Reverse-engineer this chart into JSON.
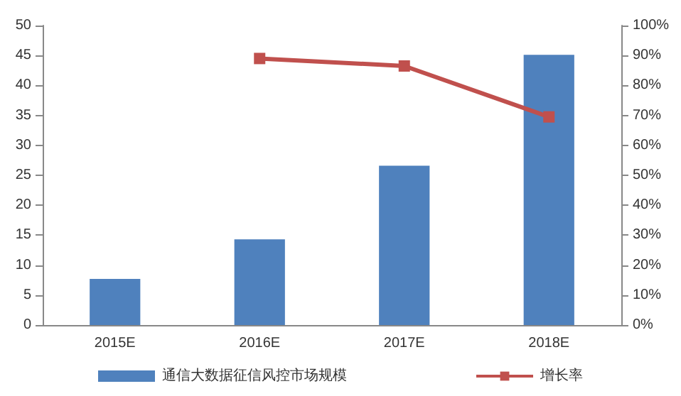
{
  "chart_data": {
    "type": "bar",
    "categories": [
      "2015E",
      "2016E",
      "2017E",
      "2018E"
    ],
    "series": [
      {
        "name": "通信大数据征信风控市场规模",
        "color": "#4f81bd",
        "values": [
          7.7,
          14.3,
          26.6,
          45.1
        ]
      },
      {
        "name": "增长率",
        "type": "line",
        "axis": "y2",
        "color": "#c0504d",
        "marker": "square",
        "values": [
          null,
          89,
          86.5,
          69.5
        ]
      }
    ],
    "ylim": [
      0,
      50
    ],
    "yticks": [
      0,
      5,
      10,
      15,
      20,
      25,
      30,
      35,
      40,
      45,
      50
    ],
    "y2lim": [
      0,
      100
    ],
    "y2ticks": [
      {
        "value": 0,
        "label": "0%"
      },
      {
        "value": 10,
        "label": "10%"
      },
      {
        "value": 20,
        "label": "20%"
      },
      {
        "value": 30,
        "label": "30%"
      },
      {
        "value": 40,
        "label": "40%"
      },
      {
        "value": 50,
        "label": "50%"
      },
      {
        "value": 60,
        "label": "60%"
      },
      {
        "value": 70,
        "label": "70%"
      },
      {
        "value": 80,
        "label": "80%"
      },
      {
        "value": 90,
        "label": "90%"
      },
      {
        "value": 100,
        "label": "100%"
      }
    ],
    "grid": false,
    "legend": "bottom"
  }
}
